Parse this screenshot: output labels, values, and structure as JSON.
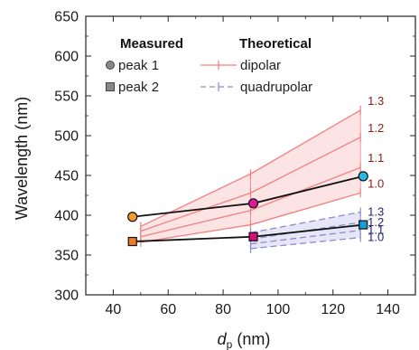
{
  "chart_data": {
    "type": "line",
    "xlabel": "d",
    "xlabel_subscript": "p",
    "xlabel_unit": " (nm)",
    "ylabel": "Wavelength (nm)",
    "xlim": [
      30,
      150
    ],
    "ylim": [
      300,
      650
    ],
    "x_ticks": [
      40,
      60,
      80,
      100,
      120,
      140
    ],
    "y_ticks": [
      300,
      350,
      400,
      450,
      500,
      550,
      600,
      650
    ],
    "grid": false,
    "legend": {
      "position": "top-left",
      "measured_title": "Measured",
      "theoretical_title": "Theoretical",
      "measured_items": [
        {
          "label": "peak 1",
          "marker": "circle"
        },
        {
          "label": "peak 2",
          "marker": "square"
        }
      ],
      "theoretical_items": [
        {
          "label": "dipolar",
          "style": "solid",
          "color": "#f08080"
        },
        {
          "label": "quadrupolar",
          "style": "dashed",
          "color": "#8a8ad0"
        }
      ]
    },
    "theoretical": {
      "dipolar": {
        "color": "#f08080",
        "fill": "#fde4e4",
        "x": [
          50,
          90,
          130
        ],
        "lines": [
          {
            "label": "1.3",
            "y": [
              386,
              452,
              532
            ]
          },
          {
            "label": "1.2",
            "y": [
              380,
              428,
              498
            ]
          },
          {
            "label": "1.1",
            "y": [
              373,
              406,
              460
            ]
          },
          {
            "label": "1.0",
            "y": [
              366,
              388,
              428
            ]
          }
        ],
        "label_color": "#8b1a1a"
      },
      "quadrupolar": {
        "color": "#8a8ad0",
        "fill": "#e6e6f6",
        "x": [
          90,
          130
        ],
        "lines": [
          {
            "label": "1.3",
            "y": [
              378,
              404
            ]
          },
          {
            "label": "1.2",
            "y": [
              370,
              391
            ]
          },
          {
            "label": "1.1",
            "y": [
              364,
              381
            ]
          },
          {
            "label": "1.0",
            "y": [
              358,
              372
            ]
          }
        ],
        "label_color": "#23237a"
      }
    },
    "measured": [
      {
        "name": "peak 1",
        "marker": "circle",
        "x": [
          47,
          91,
          131
        ],
        "y": [
          398,
          415,
          449
        ],
        "colors": [
          "#f39a2a",
          "#e0199a",
          "#29b6e6"
        ]
      },
      {
        "name": "peak 2",
        "marker": "square",
        "x": [
          47,
          91,
          131
        ],
        "y": [
          367,
          373,
          388
        ],
        "colors": [
          "#f07a24",
          "#d0127a",
          "#1a9ad6"
        ]
      }
    ]
  }
}
